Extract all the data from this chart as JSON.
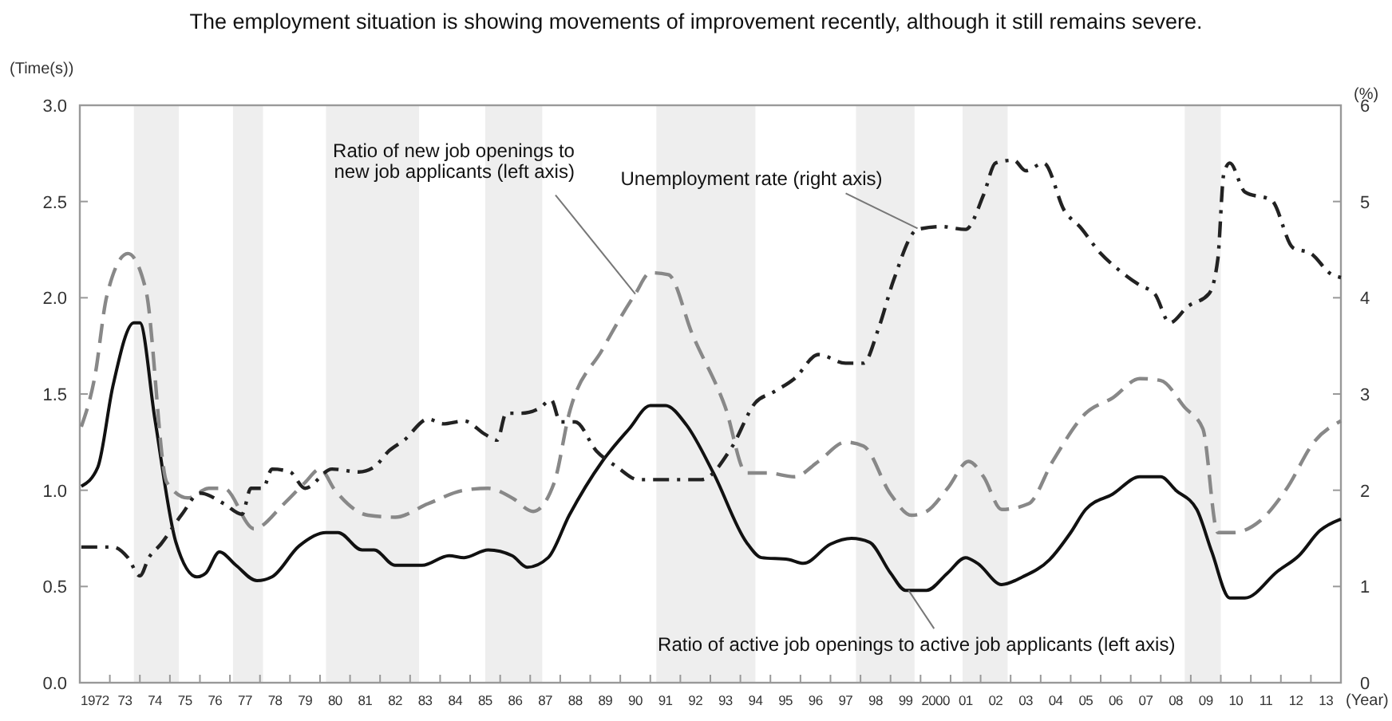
{
  "chart_data": {
    "type": "line",
    "title": "The employment situation is showing movements of improvement recently, although it still remains severe.",
    "xlabel": "(Year)",
    "ylabel": "(Time(s))",
    "y2label": "(%)",
    "xlim": [
      1971.5,
      2013.5
    ],
    "xticks": [
      1972,
      {
        "value": 1972.5,
        "label": null
      },
      {
        "value": 1973,
        "label": "73"
      },
      {
        "value": 1973.5,
        "label": null
      },
      {
        "value": 1974,
        "label": "74"
      },
      {
        "value": 1974.5,
        "label": null
      },
      {
        "value": 1975,
        "label": "75"
      },
      {
        "value": 1975.5,
        "label": null
      },
      {
        "value": 1976,
        "label": "76"
      },
      {
        "value": 1976.5,
        "label": null
      },
      {
        "value": 1977,
        "label": "77"
      },
      {
        "value": 1977.5,
        "label": null
      },
      {
        "value": 1978,
        "label": "78"
      },
      {
        "value": 1978.5,
        "label": null
      },
      {
        "value": 1979,
        "label": "79"
      },
      {
        "value": 1979.5,
        "label": null
      },
      {
        "value": 1980,
        "label": "80"
      },
      {
        "value": 1980.5,
        "label": null
      },
      {
        "value": 1981,
        "label": "81"
      },
      {
        "value": 1981.5,
        "label": null
      },
      {
        "value": 1982,
        "label": "82"
      },
      {
        "value": 1982.5,
        "label": null
      },
      {
        "value": 1983,
        "label": "83"
      },
      {
        "value": 1983.5,
        "label": null
      },
      {
        "value": 1984,
        "label": "84"
      },
      {
        "value": 1984.5,
        "label": null
      },
      {
        "value": 1985,
        "label": "85"
      },
      {
        "value": 1985.5,
        "label": null
      },
      {
        "value": 1986,
        "label": "86"
      },
      {
        "value": 1986.5,
        "label": null
      },
      {
        "value": 1987,
        "label": "87"
      },
      {
        "value": 1987.5,
        "label": null
      },
      {
        "value": 1988,
        "label": "88"
      },
      {
        "value": 1988.5,
        "label": null
      },
      {
        "value": 1989,
        "label": "89"
      },
      {
        "value": 1989.5,
        "label": null
      },
      {
        "value": 1990,
        "label": "90"
      },
      {
        "value": 1990.5,
        "label": null
      },
      {
        "value": 1991,
        "label": "91"
      },
      {
        "value": 1991.5,
        "label": null
      },
      {
        "value": 1992,
        "label": "92"
      },
      {
        "value": 1992.5,
        "label": null
      },
      {
        "value": 1993,
        "label": "93"
      },
      {
        "value": 1993.5,
        "label": null
      },
      {
        "value": 1994,
        "label": "94"
      },
      {
        "value": 1994.5,
        "label": null
      },
      {
        "value": 1995,
        "label": "95"
      },
      {
        "value": 1995.5,
        "label": null
      },
      {
        "value": 1996,
        "label": "96"
      },
      {
        "value": 1996.5,
        "label": null
      },
      {
        "value": 1997,
        "label": "97"
      },
      {
        "value": 1997.5,
        "label": null
      },
      {
        "value": 1998,
        "label": "98"
      },
      {
        "value": 1998.5,
        "label": null
      },
      {
        "value": 1999,
        "label": "99"
      },
      {
        "value": 1999.5,
        "label": null
      },
      2000,
      {
        "value": 2000.5,
        "label": null
      },
      {
        "value": 2001,
        "label": "01"
      },
      {
        "value": 2001.5,
        "label": null
      },
      {
        "value": 2002,
        "label": "02"
      },
      {
        "value": 2002.5,
        "label": null
      },
      {
        "value": 2003,
        "label": "03"
      },
      {
        "value": 2003.5,
        "label": null
      },
      {
        "value": 2004,
        "label": "04"
      },
      {
        "value": 2004.5,
        "label": null
      },
      {
        "value": 2005,
        "label": "05"
      },
      {
        "value": 2005.5,
        "label": null
      },
      {
        "value": 2006,
        "label": "06"
      },
      {
        "value": 2006.5,
        "label": null
      },
      {
        "value": 2007,
        "label": "07"
      },
      {
        "value": 2007.5,
        "label": null
      },
      {
        "value": 2008,
        "label": "08"
      },
      {
        "value": 2008.5,
        "label": null
      },
      {
        "value": 2009,
        "label": "09"
      },
      {
        "value": 2009.5,
        "label": null
      },
      {
        "value": 2010,
        "label": "10"
      },
      {
        "value": 2010.5,
        "label": null
      },
      {
        "value": 2011,
        "label": "11"
      },
      {
        "value": 2011.5,
        "label": null
      },
      {
        "value": 2012,
        "label": "12"
      },
      {
        "value": 2012.5,
        "label": null
      },
      {
        "value": 2013,
        "label": "13"
      }
    ],
    "ylim": [
      0,
      3
    ],
    "yticks": [
      {
        "value": 0,
        "label": "0.0"
      },
      0.5,
      {
        "value": 1,
        "label": "1.0"
      },
      1.5,
      {
        "value": 2,
        "label": "2.0"
      },
      2.5,
      {
        "value": 3,
        "label": "3.0"
      }
    ],
    "y2lim": [
      0,
      6
    ],
    "y2ticks": [
      0,
      1,
      2,
      3,
      4,
      5,
      6
    ],
    "bands": [
      {
        "axis": "x",
        "from": 1973.3,
        "to": 1974.8,
        "color": "#eeeeee"
      },
      {
        "axis": "x",
        "from": 1976.6,
        "to": 1977.6,
        "color": "#eeeeee"
      },
      {
        "axis": "x",
        "from": 1979.7,
        "to": 1982.8,
        "color": "#eeeeee"
      },
      {
        "axis": "x",
        "from": 1985.0,
        "to": 1986.9,
        "color": "#eeeeee"
      },
      {
        "axis": "x",
        "from": 1990.7,
        "to": 1994.0,
        "color": "#eeeeee"
      },
      {
        "axis": "x",
        "from": 1997.35,
        "to": 1999.3,
        "color": "#eeeeee"
      },
      {
        "axis": "x",
        "from": 2000.9,
        "to": 2002.4,
        "color": "#eeeeee"
      },
      {
        "axis": "x",
        "from": 2008.3,
        "to": 2009.5,
        "color": "#eeeeee"
      }
    ],
    "series": [
      {
        "color": "#111111",
        "line_style": "solid",
        "x": [
          1971.55,
          1972.1,
          1972.6,
          1973.3,
          1973.5,
          1974.0,
          1974.7,
          1975.4,
          1975.7,
          1976.15,
          1976.7,
          1977.4,
          1977.9,
          1978.8,
          1979.7,
          1980.1,
          1980.9,
          1981.3,
          1982.0,
          1982.9,
          1983.8,
          1984.3,
          1985.1,
          1985.9,
          1986.4,
          1987.1,
          1987.8,
          1988.9,
          1989.8,
          1990.5,
          1991.0,
          1991.7,
          1992.6,
          1993.7,
          1994.2,
          1995.1,
          1995.6,
          1996.5,
          1997.2,
          1997.8,
          1998.5,
          1999.0,
          1999.7,
          2000.4,
          2001.0,
          2001.4,
          2002.2,
          2002.9,
          2003.8,
          2004.5,
          2005.0,
          2005.9,
          2006.8,
          2007.5,
          2008.0,
          2008.7,
          2009.2,
          2009.8,
          2010.3,
          2011.4,
          2012.1,
          2012.8,
          2013.5
        ],
        "values": [
          1.02,
          1.12,
          1.54,
          1.87,
          1.87,
          1.37,
          0.73,
          0.55,
          0.57,
          0.68,
          0.61,
          0.53,
          0.55,
          0.71,
          0.78,
          0.78,
          0.69,
          0.69,
          0.61,
          0.61,
          0.66,
          0.65,
          0.69,
          0.66,
          0.6,
          0.65,
          0.87,
          1.15,
          1.32,
          1.44,
          1.44,
          1.34,
          1.09,
          0.73,
          0.65,
          0.64,
          0.62,
          0.72,
          0.75,
          0.73,
          0.57,
          0.48,
          0.48,
          0.57,
          0.65,
          0.62,
          0.51,
          0.55,
          0.64,
          0.78,
          0.9,
          0.98,
          1.07,
          1.07,
          1.0,
          0.9,
          0.68,
          0.44,
          0.44,
          0.58,
          0.66,
          0.79,
          0.85
        ]
      },
      {
        "color": "#888888",
        "line_style": "dashed",
        "x": [
          1971.55,
          1972.0,
          1972.4,
          1973.1,
          1973.7,
          1974.4,
          1975.1,
          1975.8,
          1976.3,
          1977.3,
          1978.3,
          1979.0,
          1979.5,
          1980.0,
          1981.1,
          1982.0,
          1983.1,
          1984.3,
          1985.1,
          1985.9,
          1986.6,
          1987.3,
          1987.8,
          1988.9,
          1990.0,
          1990.5,
          1991.1,
          1991.9,
          1993.0,
          1993.7,
          1994.4,
          1995.3,
          1996.1,
          1997.0,
          1997.6,
          1998.5,
          1999.2,
          1999.7,
          2000.4,
          2001.1,
          2001.6,
          2002.2,
          2003.1,
          2003.9,
          2005.0,
          2005.9,
          2006.8,
          2007.5,
          2008.3,
          2008.9,
          2009.4,
          2009.9,
          2010.8,
          2011.7,
          2012.6,
          2013.5
        ],
        "values": [
          1.33,
          1.59,
          2.01,
          2.23,
          2.04,
          1.04,
          0.96,
          1.01,
          1.01,
          0.8,
          0.93,
          1.04,
          1.11,
          1.0,
          0.87,
          0.86,
          0.93,
          1.0,
          1.01,
          0.96,
          0.89,
          1.04,
          1.4,
          1.73,
          2.02,
          2.13,
          2.12,
          1.81,
          1.43,
          1.09,
          1.09,
          1.07,
          1.15,
          1.25,
          1.23,
          0.98,
          0.87,
          0.89,
          1.01,
          1.15,
          1.07,
          0.9,
          0.93,
          1.15,
          1.4,
          1.48,
          1.58,
          1.57,
          1.43,
          1.32,
          0.78,
          0.78,
          0.84,
          1.01,
          1.25,
          1.36
        ]
      },
      {
        "color": "#222222",
        "line_style": "dashdot",
        "axis": "y2",
        "x": [
          1971.55,
          1972.6,
          1973.1,
          1973.5,
          1973.8,
          1974.2,
          1974.9,
          1975.5,
          1976.3,
          1976.9,
          1977.2,
          1977.6,
          1977.9,
          1978.5,
          1979.0,
          1979.9,
          1980.8,
          1981.3,
          1981.8,
          1982.3,
          1983.1,
          1983.6,
          1984.3,
          1985.0,
          1985.4,
          1985.7,
          1986.2,
          1986.8,
          1987.2,
          1987.5,
          1988.0,
          1988.7,
          1989.4,
          1990.1,
          1991.0,
          1992.2,
          1993.2,
          1994.0,
          1994.6,
          1995.3,
          1996.1,
          1997.0,
          1997.6,
          1998.1,
          1998.6,
          1999.4,
          2000.2,
          2001.0,
          2001.6,
          2002.0,
          2002.6,
          2003.0,
          2003.6,
          2004.3,
          2004.8,
          2005.5,
          2006.1,
          2006.8,
          2007.3,
          2007.8,
          2008.4,
          2009.1,
          2009.4,
          2009.6,
          2009.8,
          2010.3,
          2011.2,
          2011.9,
          2012.5,
          2013.2,
          2013.5
        ],
        "values": [
          1.41,
          1.41,
          1.3,
          1.11,
          1.3,
          1.44,
          1.75,
          1.97,
          1.86,
          1.75,
          2.02,
          2.02,
          2.22,
          2.19,
          2.02,
          2.22,
          2.19,
          2.24,
          2.41,
          2.52,
          2.74,
          2.69,
          2.72,
          2.58,
          2.52,
          2.8,
          2.8,
          2.85,
          2.94,
          2.71,
          2.71,
          2.41,
          2.24,
          2.11,
          2.11,
          2.11,
          2.44,
          2.91,
          3.02,
          3.16,
          3.41,
          3.32,
          3.32,
          3.68,
          4.18,
          4.71,
          4.74,
          4.71,
          5.07,
          5.4,
          5.43,
          5.32,
          5.4,
          4.9,
          4.74,
          4.46,
          4.29,
          4.13,
          4.04,
          3.74,
          3.91,
          4.04,
          4.4,
          5.29,
          5.4,
          5.1,
          5.01,
          4.52,
          4.46,
          4.24,
          4.21
        ]
      }
    ],
    "annotations": [
      {
        "text": "Ratio of new job openings to\nnew job applicants (left axis)",
        "x": 1990.0,
        "y": 2.02
      },
      {
        "text": "Unemployment rate (right axis)",
        "x": 1999.4,
        "y": 2.36
      },
      {
        "text": "Ratio of active job openings to active job applicants (left axis)",
        "x": 1999.1,
        "y": 0.48
      }
    ]
  }
}
